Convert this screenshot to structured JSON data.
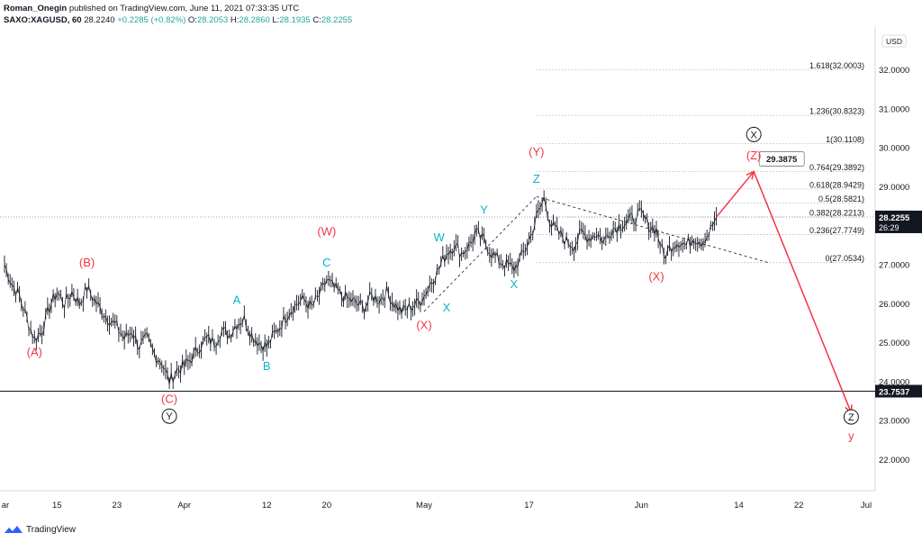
{
  "header": {
    "author": "Roman_Onegin",
    "published": "published on TradingView.com, June 11, 2021 07:33:35 UTC",
    "symbol": "SAXO:XAGUSD, 60",
    "last": "28.2240",
    "change": "+0.2285 (+0.82%)",
    "o_label": "O:",
    "o": "28.2053",
    "h_label": "H:",
    "h": "28.2860",
    "l_label": "L:",
    "l": "28.1935",
    "c_label": "C:",
    "c": "28.2255"
  },
  "footer": {
    "brand": "TradingView",
    "logo_icon": "tradingview-logo-icon"
  },
  "colors": {
    "candle": "#131722",
    "red_label": "#f23645",
    "cyan_label": "#0ab5c6",
    "arrow": "#f23645",
    "price_tag_bg": "#131722",
    "grid": "#b2b5be"
  },
  "chart_data": {
    "type": "line",
    "title": "",
    "xlabel": "",
    "ylabel": "",
    "currency": "USD",
    "ylim": [
      21.2,
      33.1
    ],
    "y_ticks": [
      22.0,
      23.0,
      24.0,
      25.0,
      26.0,
      27.0,
      28.0,
      29.0,
      30.0,
      31.0,
      32.0
    ],
    "x_ticks": [
      {
        "label": "ar",
        "date": "2021-03-08"
      },
      {
        "label": "15",
        "date": "2021-03-15"
      },
      {
        "label": "23",
        "date": "2021-03-23"
      },
      {
        "label": "Apr",
        "date": "2021-04-01"
      },
      {
        "label": "12",
        "date": "2021-04-12"
      },
      {
        "label": "20",
        "date": "2021-04-20"
      },
      {
        "label": "May",
        "date": "2021-05-03"
      },
      {
        "label": "17",
        "date": "2021-05-17"
      },
      {
        "label": "Jun",
        "date": "2021-06-01"
      },
      {
        "label": "14",
        "date": "2021-06-14"
      },
      {
        "label": "22",
        "date": "2021-06-22"
      },
      {
        "label": "Jul",
        "date": "2021-07-01"
      }
    ],
    "price_path": [
      [
        "2021-03-08",
        27.0
      ],
      [
        "2021-03-09",
        26.5
      ],
      [
        "2021-03-10",
        26.2
      ],
      [
        "2021-03-11",
        25.6
      ],
      [
        "2021-03-12",
        25.1
      ],
      [
        "2021-03-13",
        25.3
      ],
      [
        "2021-03-14",
        25.9
      ],
      [
        "2021-03-15",
        26.3
      ],
      [
        "2021-03-16",
        26.0
      ],
      [
        "2021-03-17",
        26.3
      ],
      [
        "2021-03-18",
        26.0
      ],
      [
        "2021-03-19",
        26.4
      ],
      [
        "2021-03-20",
        26.1
      ],
      [
        "2021-03-21",
        25.8
      ],
      [
        "2021-03-22",
        25.6
      ],
      [
        "2021-03-23",
        25.4
      ],
      [
        "2021-03-24",
        25.1
      ],
      [
        "2021-03-25",
        25.3
      ],
      [
        "2021-03-26",
        24.9
      ],
      [
        "2021-03-27",
        25.1
      ],
      [
        "2021-03-28",
        24.7
      ],
      [
        "2021-03-29",
        24.5
      ],
      [
        "2021-03-30",
        24.0
      ],
      [
        "2021-03-31",
        24.3
      ],
      [
        "2021-04-01",
        24.4
      ],
      [
        "2021-04-02",
        24.6
      ],
      [
        "2021-04-03",
        24.9
      ],
      [
        "2021-04-04",
        25.1
      ],
      [
        "2021-04-05",
        25.0
      ],
      [
        "2021-04-06",
        25.3
      ],
      [
        "2021-04-07",
        25.2
      ],
      [
        "2021-04-08",
        25.5
      ],
      [
        "2021-04-09",
        25.6
      ],
      [
        "2021-04-10",
        25.2
      ],
      [
        "2021-04-11",
        25.0
      ],
      [
        "2021-04-12",
        24.9
      ],
      [
        "2021-04-13",
        25.2
      ],
      [
        "2021-04-14",
        25.5
      ],
      [
        "2021-04-15",
        25.8
      ],
      [
        "2021-04-16",
        26.0
      ],
      [
        "2021-04-17",
        26.1
      ],
      [
        "2021-04-18",
        25.9
      ],
      [
        "2021-04-19",
        26.2
      ],
      [
        "2021-04-20",
        26.6
      ],
      [
        "2021-04-21",
        26.4
      ],
      [
        "2021-04-22",
        26.2
      ],
      [
        "2021-04-23",
        26.1
      ],
      [
        "2021-04-24",
        26.0
      ],
      [
        "2021-04-25",
        25.9
      ],
      [
        "2021-04-26",
        26.2
      ],
      [
        "2021-04-27",
        26.1
      ],
      [
        "2021-04-28",
        26.3
      ],
      [
        "2021-04-29",
        26.0
      ],
      [
        "2021-04-30",
        25.8
      ],
      [
        "2021-05-01",
        25.9
      ],
      [
        "2021-05-02",
        26.0
      ],
      [
        "2021-05-03",
        26.2
      ],
      [
        "2021-05-04",
        26.6
      ],
      [
        "2021-05-05",
        26.9
      ],
      [
        "2021-05-06",
        27.3
      ],
      [
        "2021-05-07",
        27.5
      ],
      [
        "2021-05-08",
        27.3
      ],
      [
        "2021-05-09",
        27.5
      ],
      [
        "2021-05-10",
        27.8
      ],
      [
        "2021-05-11",
        27.6
      ],
      [
        "2021-05-12",
        27.3
      ],
      [
        "2021-05-13",
        27.1
      ],
      [
        "2021-05-14",
        27.0
      ],
      [
        "2021-05-15",
        26.9
      ],
      [
        "2021-05-16",
        27.2
      ],
      [
        "2021-05-17",
        27.6
      ],
      [
        "2021-05-18",
        28.2
      ],
      [
        "2021-05-19",
        28.7
      ],
      [
        "2021-05-20",
        28.0
      ],
      [
        "2021-05-21",
        27.8
      ],
      [
        "2021-05-22",
        27.6
      ],
      [
        "2021-05-23",
        27.5
      ],
      [
        "2021-05-24",
        27.8
      ],
      [
        "2021-05-25",
        27.7
      ],
      [
        "2021-05-26",
        27.8
      ],
      [
        "2021-05-27",
        27.6
      ],
      [
        "2021-05-28",
        27.9
      ],
      [
        "2021-05-29",
        28.0
      ],
      [
        "2021-05-30",
        28.1
      ],
      [
        "2021-05-31",
        28.2
      ],
      [
        "2021-06-01",
        28.3
      ],
      [
        "2021-06-02",
        28.0
      ],
      [
        "2021-06-03",
        27.9
      ],
      [
        "2021-06-04",
        27.2
      ],
      [
        "2021-06-05",
        27.5
      ],
      [
        "2021-06-06",
        27.6
      ],
      [
        "2021-06-07",
        27.5
      ],
      [
        "2021-06-08",
        27.7
      ],
      [
        "2021-06-09",
        27.6
      ],
      [
        "2021-06-10",
        27.8
      ],
      [
        "2021-06-11",
        28.22
      ]
    ],
    "fib_levels": [
      {
        "label": "1.618(32.0003)",
        "price": 32.0003
      },
      {
        "label": "1.236(30.8323)",
        "price": 30.8323
      },
      {
        "label": "1(30.1108)",
        "price": 30.1108
      },
      {
        "label": "0.764(29.3892)",
        "price": 29.3892
      },
      {
        "label": "0.618(28.9429)",
        "price": 28.9429
      },
      {
        "label": "0.5(28.5821)",
        "price": 28.5821
      },
      {
        "label": "0.382(28.2213)",
        "price": 28.2213
      },
      {
        "label": "0.236(27.7749)",
        "price": 27.7749
      },
      {
        "label": "0(27.0534)",
        "price": 27.0534
      }
    ],
    "wave_labels": [
      {
        "text": "(A)",
        "date": "2021-03-12",
        "price": 24.65,
        "color": "red"
      },
      {
        "text": "(B)",
        "date": "2021-03-19",
        "price": 26.95,
        "color": "red"
      },
      {
        "text": "(C)",
        "date": "2021-03-30",
        "price": 23.45,
        "color": "red"
      },
      {
        "text": "Y",
        "date": "2021-03-30",
        "price": 23.02,
        "color": "black",
        "circled": true
      },
      {
        "text": "A",
        "date": "2021-04-08",
        "price": 26.0,
        "color": "cyan"
      },
      {
        "text": "B",
        "date": "2021-04-12",
        "price": 24.3,
        "color": "cyan"
      },
      {
        "text": "(W)",
        "date": "2021-04-20",
        "price": 27.75,
        "color": "red"
      },
      {
        "text": "C",
        "date": "2021-04-20",
        "price": 26.95,
        "color": "cyan"
      },
      {
        "text": "(X)",
        "date": "2021-05-03",
        "price": 25.35,
        "color": "red"
      },
      {
        "text": "W",
        "date": "2021-05-05",
        "price": 27.6,
        "color": "cyan"
      },
      {
        "text": "X",
        "date": "2021-05-06",
        "price": 25.8,
        "color": "cyan"
      },
      {
        "text": "Y",
        "date": "2021-05-11",
        "price": 28.3,
        "color": "cyan"
      },
      {
        "text": "X",
        "date": "2021-05-15",
        "price": 26.4,
        "color": "cyan"
      },
      {
        "text": "Z",
        "date": "2021-05-18",
        "price": 29.1,
        "color": "cyan"
      },
      {
        "text": "(Y)",
        "date": "2021-05-18",
        "price": 29.8,
        "color": "red"
      },
      {
        "text": "(X)",
        "date": "2021-06-03",
        "price": 26.6,
        "color": "red"
      },
      {
        "text": "(Z)",
        "date": "2021-06-16",
        "price": 29.7,
        "color": "red"
      },
      {
        "text": "X",
        "date": "2021-06-16",
        "price": 30.25,
        "color": "black",
        "circled": true
      },
      {
        "text": "Z",
        "date": "2021-06-29",
        "price": 23.0,
        "color": "black",
        "circled": true
      },
      {
        "text": "y",
        "date": "2021-06-29",
        "price": 22.5,
        "color": "red"
      }
    ],
    "projection": [
      [
        "2021-06-11",
        28.22
      ],
      [
        "2021-06-16",
        29.39
      ],
      [
        "2021-06-29",
        23.2
      ]
    ],
    "projection_target_label": "29.3875",
    "trendlines": [
      {
        "from": [
          "2021-05-03",
          25.8
        ],
        "to": [
          "2021-05-18",
          28.75
        ]
      },
      {
        "from": [
          "2021-05-18",
          28.75
        ],
        "to": [
          "2021-06-18",
          27.05
        ]
      }
    ],
    "horizontal_line": {
      "price": 23.7537,
      "label": "23.7537"
    },
    "current_price": {
      "price": 28.2255,
      "label": "28.2255",
      "countdown": "26:29"
    }
  }
}
